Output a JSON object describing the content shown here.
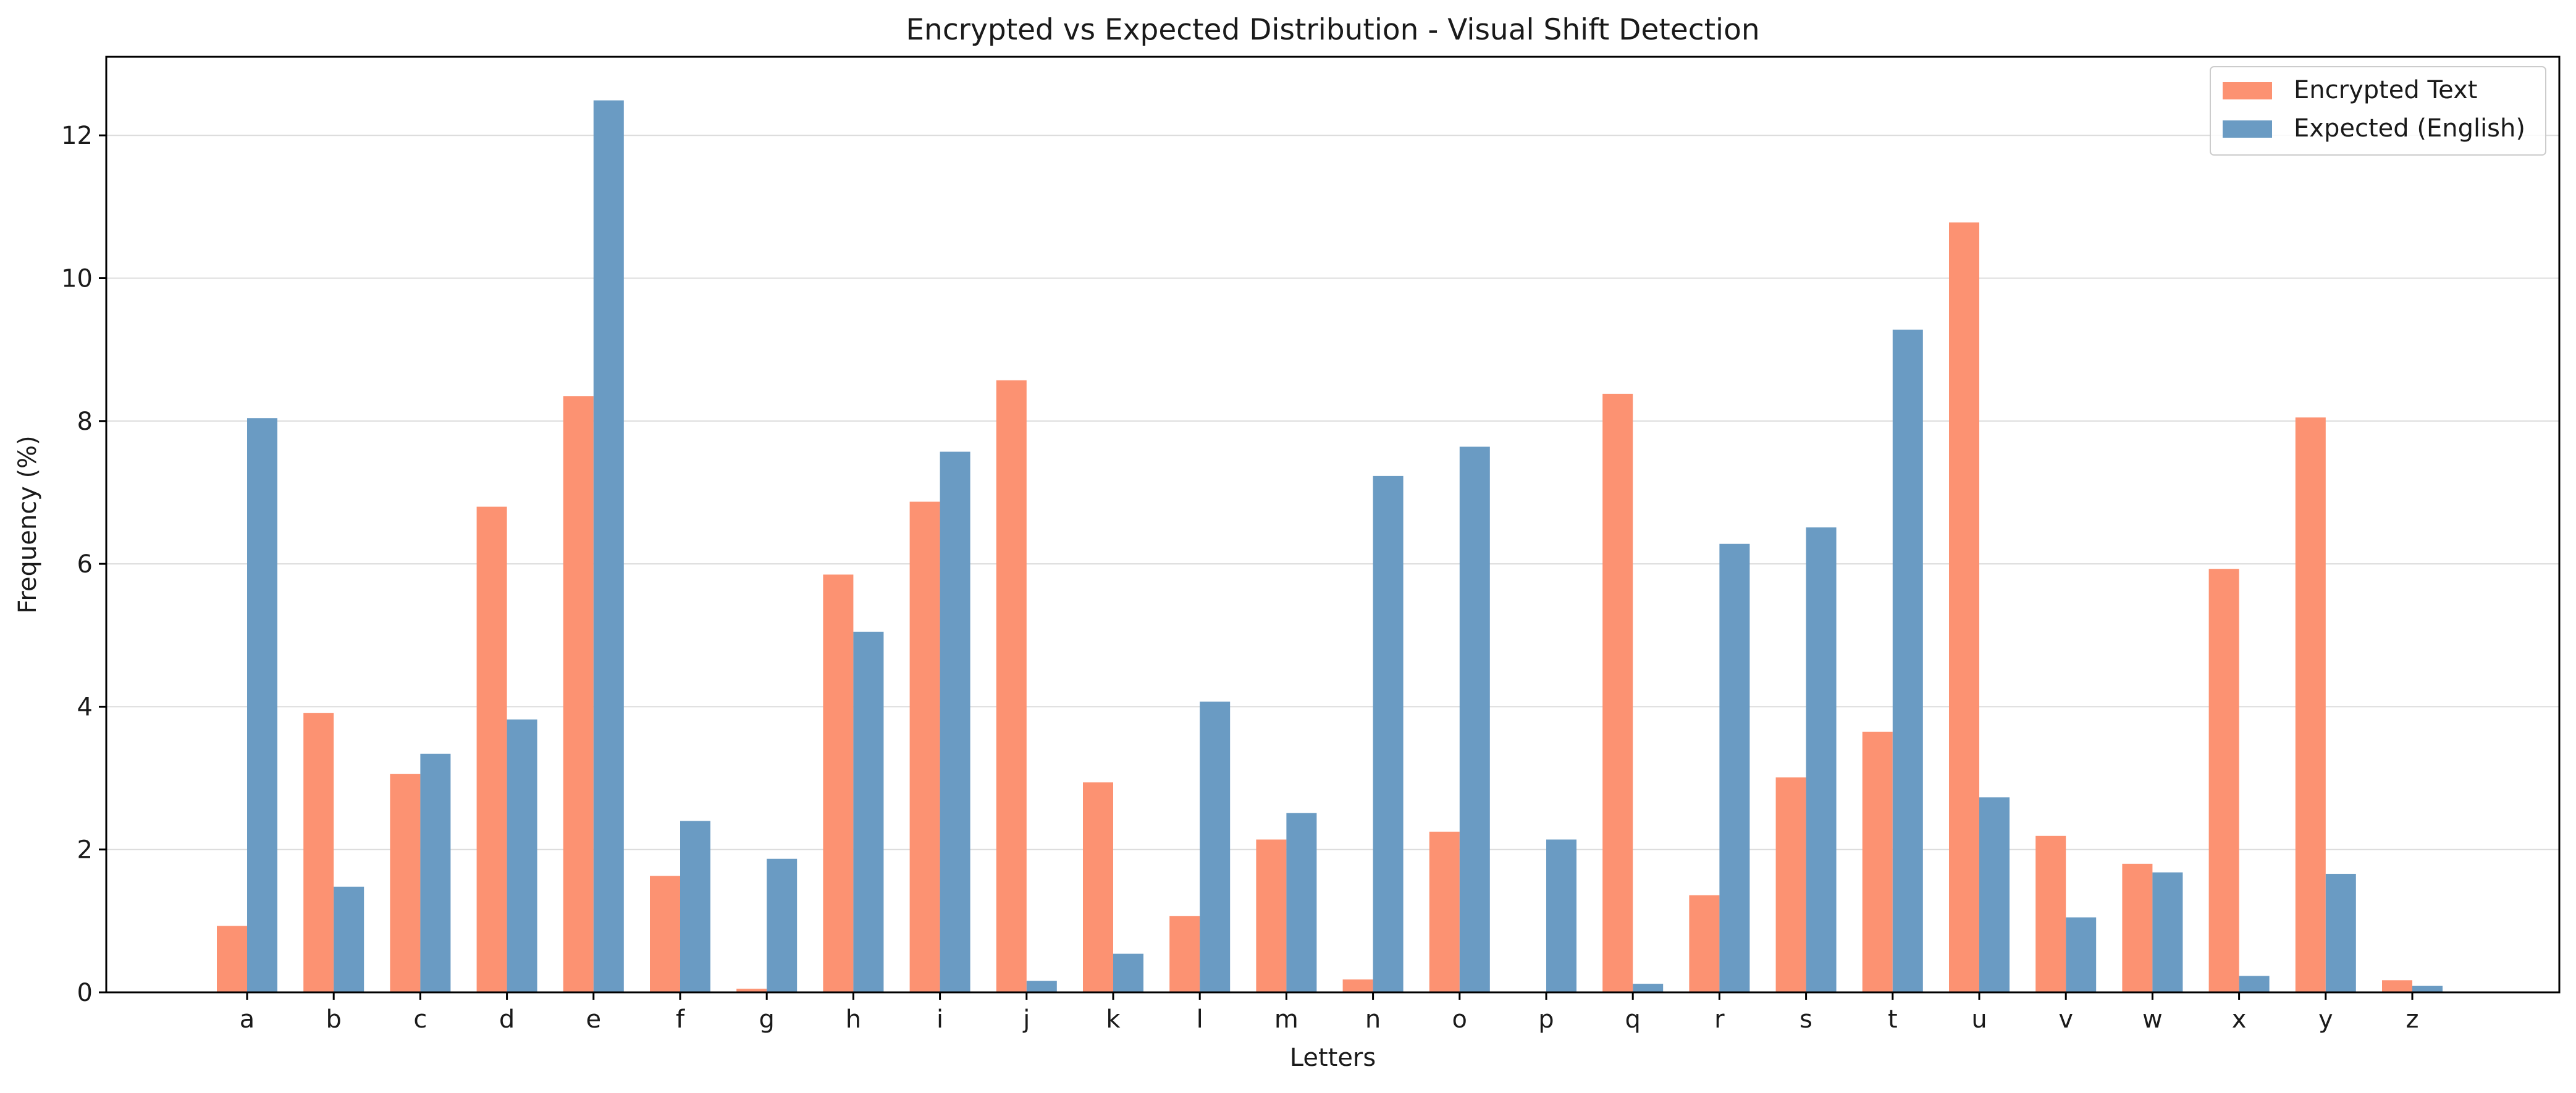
{
  "chart_data": {
    "type": "bar",
    "title": "Encrypted vs Expected Distribution - Visual Shift Detection",
    "xlabel": "Letters",
    "ylabel": "Frequency (%)",
    "ylim": [
      0,
      13.1
    ],
    "yticks": [
      0,
      2,
      4,
      6,
      8,
      10,
      12
    ],
    "grid": "horizontal",
    "legend_position": "top-right",
    "categories": [
      "a",
      "b",
      "c",
      "d",
      "e",
      "f",
      "g",
      "h",
      "i",
      "j",
      "k",
      "l",
      "m",
      "n",
      "o",
      "p",
      "q",
      "r",
      "s",
      "t",
      "u",
      "v",
      "w",
      "x",
      "y",
      "z"
    ],
    "series": [
      {
        "name": "Encrypted Text",
        "color": "#fc9272",
        "values": [
          0.93,
          3.91,
          3.06,
          6.8,
          8.35,
          1.63,
          0.05,
          5.85,
          6.87,
          8.57,
          2.94,
          1.07,
          2.14,
          0.18,
          2.25,
          0.0,
          8.38,
          1.36,
          3.01,
          3.65,
          10.78,
          2.19,
          1.8,
          5.93,
          8.05,
          0.17
        ]
      },
      {
        "name": "Expected (English)",
        "color": "#6a9bc3",
        "values": [
          8.04,
          1.48,
          3.34,
          3.82,
          12.49,
          2.4,
          1.87,
          5.05,
          7.57,
          0.16,
          0.54,
          4.07,
          2.51,
          7.23,
          7.64,
          2.14,
          0.12,
          6.28,
          6.51,
          9.28,
          2.73,
          1.05,
          1.68,
          0.23,
          1.66,
          0.09
        ]
      }
    ]
  }
}
